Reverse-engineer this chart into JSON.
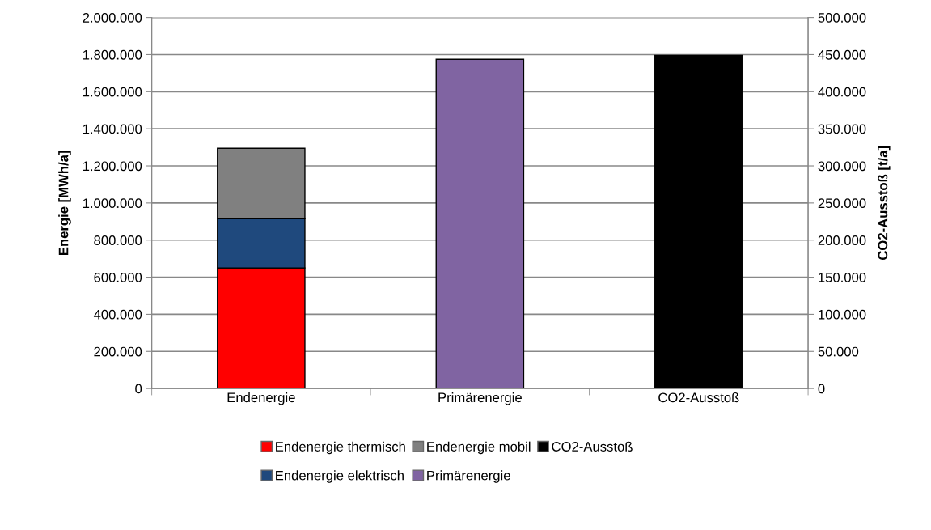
{
  "chart_data": {
    "type": "bar",
    "stacked": true,
    "categories": [
      "Endenergie",
      "Primärenergie",
      "CO2-Ausstoß"
    ],
    "ylabel": "Energie [MWh/a]",
    "y2label": "CO2-Ausstoß [t/a]",
    "ylim": [
      0,
      2000000
    ],
    "yticks": [
      {
        "value": 0,
        "label": "0"
      },
      {
        "value": 200000,
        "label": "200.000"
      },
      {
        "value": 400000,
        "label": "400.000"
      },
      {
        "value": 600000,
        "label": "600.000"
      },
      {
        "value": 800000,
        "label": "800.000"
      },
      {
        "value": 1000000,
        "label": "1.000.000"
      },
      {
        "value": 1200000,
        "label": "1.200.000"
      },
      {
        "value": 1400000,
        "label": "1.400.000"
      },
      {
        "value": 1600000,
        "label": "1.600.000"
      },
      {
        "value": 1800000,
        "label": "1.800.000"
      },
      {
        "value": 2000000,
        "label": "2.000.000"
      }
    ],
    "y2lim": [
      0,
      500000
    ],
    "y2ticks": [
      {
        "value": 0,
        "label": "0"
      },
      {
        "value": 50000,
        "label": "50.000"
      },
      {
        "value": 100000,
        "label": "100.000"
      },
      {
        "value": 150000,
        "label": "150.000"
      },
      {
        "value": 200000,
        "label": "200.000"
      },
      {
        "value": 250000,
        "label": "250.000"
      },
      {
        "value": 300000,
        "label": "300.000"
      },
      {
        "value": 350000,
        "label": "350.000"
      },
      {
        "value": 400000,
        "label": "400.000"
      },
      {
        "value": 450000,
        "label": "450.000"
      },
      {
        "value": 500000,
        "label": "500.000"
      }
    ],
    "grid": "y",
    "legend": "bottom",
    "series": [
      {
        "name": "Endenergie thermisch",
        "color": "#ff0000",
        "values": [
          650000,
          null,
          null
        ]
      },
      {
        "name": "Endenergie elektrisch",
        "color": "#1f497d",
        "values": [
          265000,
          null,
          null
        ]
      },
      {
        "name": "Endenergie mobil",
        "color": "#808080",
        "values": [
          380000,
          null,
          null
        ]
      },
      {
        "name": "Primärenergie",
        "color": "#8064a2",
        "values": [
          null,
          1775000,
          null
        ]
      },
      {
        "name": "CO2-Ausstoß",
        "color": "#000000",
        "values": [
          null,
          null,
          449000
        ],
        "axis": "y2"
      }
    ]
  }
}
